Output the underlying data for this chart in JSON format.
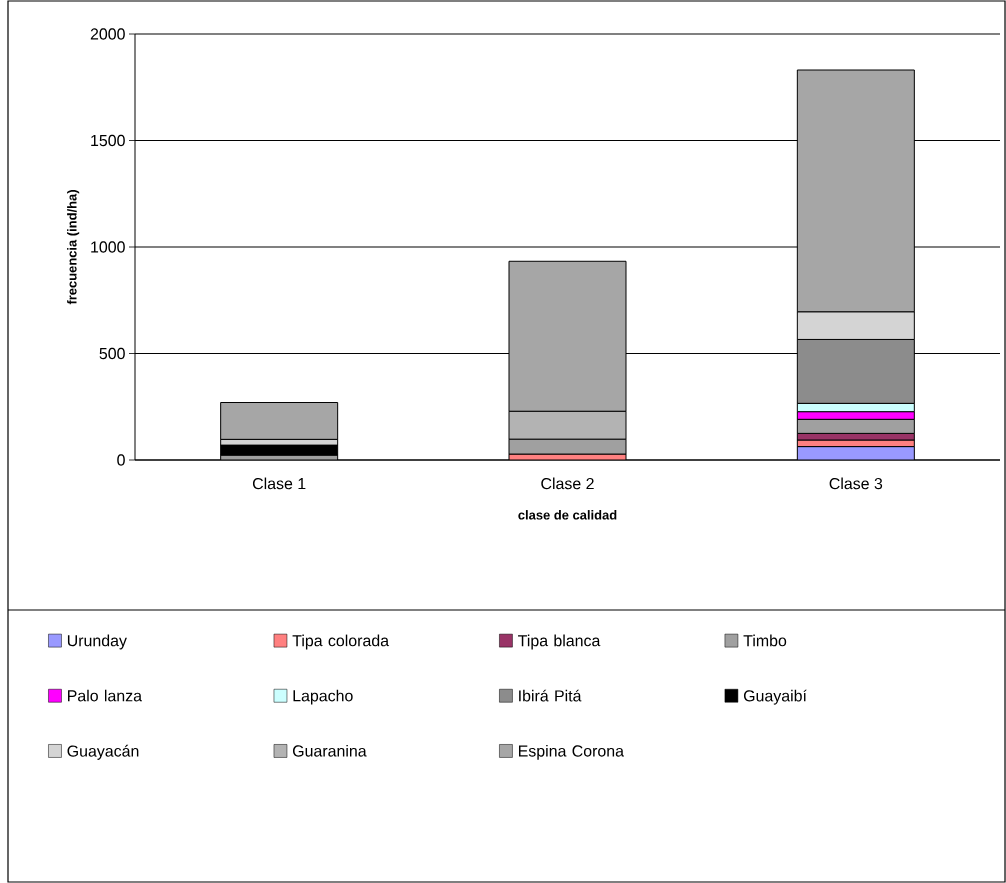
{
  "chart_data": {
    "type": "bar",
    "stacked": true,
    "xlabel": "clase de calidad",
    "ylabel": "frecuencia (ind/ha)",
    "categories": [
      "Clase 1",
      "Clase 2",
      "Clase 3"
    ],
    "ylim": [
      0,
      2000
    ],
    "yticks": [
      0,
      500,
      1000,
      1500,
      2000
    ],
    "grid": "y",
    "legend": "bottom",
    "series": [
      {
        "name": "Urunday",
        "color": "#9999ff",
        "values": [
          null,
          null,
          63
        ]
      },
      {
        "name": "Tipa colorada",
        "color": "#ff8080",
        "values": [
          null,
          28,
          31
        ]
      },
      {
        "name": "Tipa blanca",
        "color": "#993366",
        "values": [
          null,
          null,
          31
        ]
      },
      {
        "name": "Timbo",
        "color": "#a0a0a0",
        "values": [
          23,
          70,
          66
        ]
      },
      {
        "name": "Palo lanza",
        "color": "#ff00ff",
        "values": [
          null,
          null,
          36
        ]
      },
      {
        "name": "Lapacho",
        "color": "#ccffff",
        "values": [
          null,
          null,
          39
        ]
      },
      {
        "name": "Ibirá Pitá",
        "color": "#8c8c8c",
        "values": [
          null,
          null,
          300
        ]
      },
      {
        "name": "Guayaibí",
        "color": "#000000",
        "values": [
          47,
          null,
          null
        ]
      },
      {
        "name": "Guayacán",
        "color": "#d4d4d4",
        "values": [
          27,
          null,
          130
        ]
      },
      {
        "name": "Guaranina",
        "color": "#b3b3b3",
        "values": [
          null,
          131,
          null
        ]
      },
      {
        "name": "Espina Corona",
        "color": "#a6a6a6",
        "values": [
          173,
          704,
          1135
        ]
      }
    ]
  }
}
